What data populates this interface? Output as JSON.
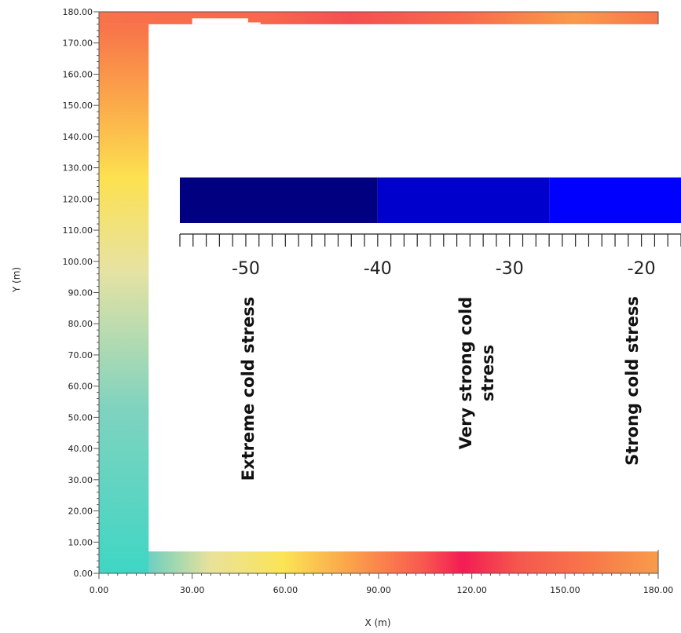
{
  "chart_data": {
    "type": "heatmap",
    "title": "",
    "xlabel": "X (m)",
    "ylabel": "Y (m)",
    "xlim": [
      0,
      180
    ],
    "ylim": [
      0,
      180
    ],
    "x_ticks": [
      "0.00",
      "30.00",
      "60.00",
      "90.00",
      "120.00",
      "150.00",
      "180.00"
    ],
    "y_ticks": [
      "0.00",
      "10.00",
      "20.00",
      "30.00",
      "40.00",
      "50.00",
      "60.00",
      "70.00",
      "80.00",
      "90.00",
      "100.00",
      "110.00",
      "120.00",
      "130.00",
      "140.00",
      "150.00",
      "160.00",
      "170.00",
      "180.00"
    ],
    "grid": false,
    "regions": [
      {
        "name": "bottom-strip",
        "x": [
          0,
          180
        ],
        "y": [
          0,
          7
        ]
      },
      {
        "name": "left-strip",
        "x": [
          0,
          16
        ],
        "y": [
          0,
          176
        ]
      },
      {
        "name": "top-strip",
        "x": [
          0,
          180
        ],
        "y": [
          176,
          180
        ]
      }
    ],
    "colorbar": {
      "ticks": [
        "-50",
        "-40",
        "-30",
        "-20"
      ],
      "range_shown": [
        -55,
        -17
      ],
      "segments": [
        {
          "from": -55,
          "to": -40,
          "color": "#000080"
        },
        {
          "from": -40,
          "to": -27,
          "color": "#0000cd"
        },
        {
          "from": -27,
          "to": -17,
          "color": "#0000ff"
        }
      ],
      "categories": [
        "Extreme cold stress",
        "Very strong cold stress",
        "Strong cold stress"
      ]
    },
    "palette": {
      "teal": "#3fd6c4",
      "yellow": "#fbe455",
      "orange": "#f8854a",
      "red": "#f41c54"
    }
  }
}
